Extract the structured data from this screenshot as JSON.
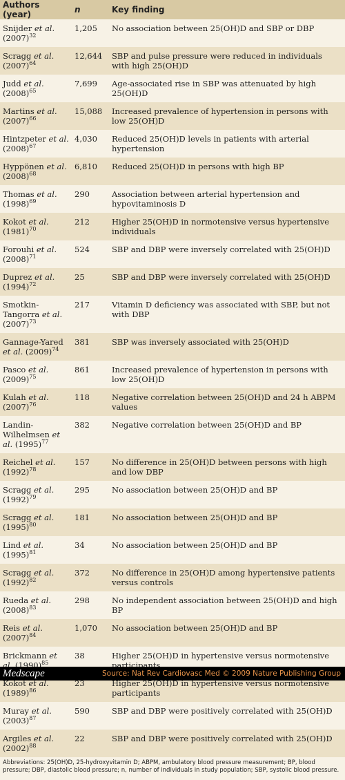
{
  "table": {
    "headers": [
      "Authors (year)",
      "n",
      "Key finding"
    ],
    "rows": [
      {
        "author": "Snijder et al. (2007)",
        "ref": "32",
        "n": "1,205",
        "finding": "No association between 25(OH)D and SBP or DBP"
      },
      {
        "author": "Scragg et al. (2007)",
        "ref": "64",
        "n": "12,644",
        "finding": "SBP and pulse pressure were reduced in individuals with high 25(OH)D"
      },
      {
        "author": "Judd et al. (2008)",
        "ref": "65",
        "n": "7,699",
        "finding": "Age-associated rise in SBP was attenuated by high 25(OH)D"
      },
      {
        "author": "Martins et al. (2007)",
        "ref": "66",
        "n": "15,088",
        "finding": "Increased prevalence of hypertension in persons with low 25(OH)D"
      },
      {
        "author": "Hintzpeter et al. (2008)",
        "ref": "67",
        "n": "4,030",
        "finding": "Reduced 25(OH)D levels in patients with arterial hypertension"
      },
      {
        "author": "Hyppönen et al. (2008)",
        "ref": "68",
        "n": "6,810",
        "finding": "Reduced 25(OH)D in persons with high BP"
      },
      {
        "author": "Thomas et al. (1998)",
        "ref": "69",
        "n": "290",
        "finding": "Association between arterial hypertension and hypovitaminosis D"
      },
      {
        "author": "Kokot et al. (1981)",
        "ref": "70",
        "n": "212",
        "finding": "Higher 25(OH)D in normotensive versus hypertensive individuals"
      },
      {
        "author": "Forouhi et al. (2008)",
        "ref": "71",
        "n": "524",
        "finding": "SBP and DBP were inversely correlated with 25(OH)D"
      },
      {
        "author": "Duprez et al. (1994)",
        "ref": "72",
        "n": "25",
        "finding": "SBP and DBP were inversely correlated with 25(OH)D"
      },
      {
        "author": "Smotkin-Tangorra et al. (2007)",
        "ref": "73",
        "n": "217",
        "finding": "Vitamin D deficiency was associated with SBP, but not with DBP"
      },
      {
        "author": "Gannage-Yared et al. (2009)",
        "ref": "74",
        "n": "381",
        "finding": "SBP was inversely associated with 25(OH)D"
      },
      {
        "author": "Pasco et al. (2009)",
        "ref": "75",
        "n": "861",
        "finding": "Increased prevalence of hypertension in persons with low 25(OH)D"
      },
      {
        "author": "Kulah et al. (2007)",
        "ref": "76",
        "n": "118",
        "finding": "Negative correlation between 25(OH)D and 24 h ABPM values"
      },
      {
        "author": "Landin-Wilhelmsen et al. (1995)",
        "ref": "77",
        "n": "382",
        "finding": "Negative correlation between 25(OH)D and BP"
      },
      {
        "author": "Reichel et al. (1992)",
        "ref": "78",
        "n": "157",
        "finding": "No difference in 25(OH)D between persons with high and low DBP"
      },
      {
        "author": "Scragg et al. (1992)",
        "ref": "79",
        "n": "295",
        "finding": "No association between 25(OH)D and BP"
      },
      {
        "author": "Scragg et al. (1995)",
        "ref": "80",
        "n": "181",
        "finding": "No association between 25(OH)D and BP"
      },
      {
        "author": "Lind et al. (1995)",
        "ref": "81",
        "n": "34",
        "finding": "No association between 25(OH)D and BP"
      },
      {
        "author": "Scragg et al. (1992)",
        "ref": "82",
        "n": "372",
        "finding": "No difference in 25(OH)D among hypertensive patients versus controls"
      },
      {
        "author": "Rueda et al. (2008)",
        "ref": "83",
        "n": "298",
        "finding": "No independent association between 25(OH)D and high BP"
      },
      {
        "author": "Reis et al. (2007)",
        "ref": "84",
        "n": "1,070",
        "finding": "No association between 25(OH)D and BP"
      },
      {
        "author": "Brickmann et al. (1990)",
        "ref": "85",
        "n": "38",
        "finding": "Higher 25(OH)D in hypertensive versus normotensive participants"
      },
      {
        "author": "Kokot et al. (1989)",
        "ref": "86",
        "n": "23",
        "finding": "Higher 25(OH)D in hypertensive versus normotensive participants"
      },
      {
        "author": "Muray et al. (2003)",
        "ref": "87",
        "n": "590",
        "finding": "SBP and DBP were positively correlated with 25(OH)D"
      },
      {
        "author": "Argiles et al. (2002)",
        "ref": "88",
        "n": "22",
        "finding": "SBP and DBP were positively correlated with 25(OH)D"
      }
    ]
  },
  "footer": {
    "abbreviations": "Abbreviations: 25(OH)D, 25-hydroxyvitamin D; ABPM, ambulatory blood pressure measurement; BP, blood pressure; DBP, diastolic blood pressure; n, number of individuals in study population; SBP, systolic blood pressure.",
    "logo": "Medscape",
    "source": "Source: Nat Rev Cardiovasc Med © 2009  Nature Publishing Group"
  }
}
